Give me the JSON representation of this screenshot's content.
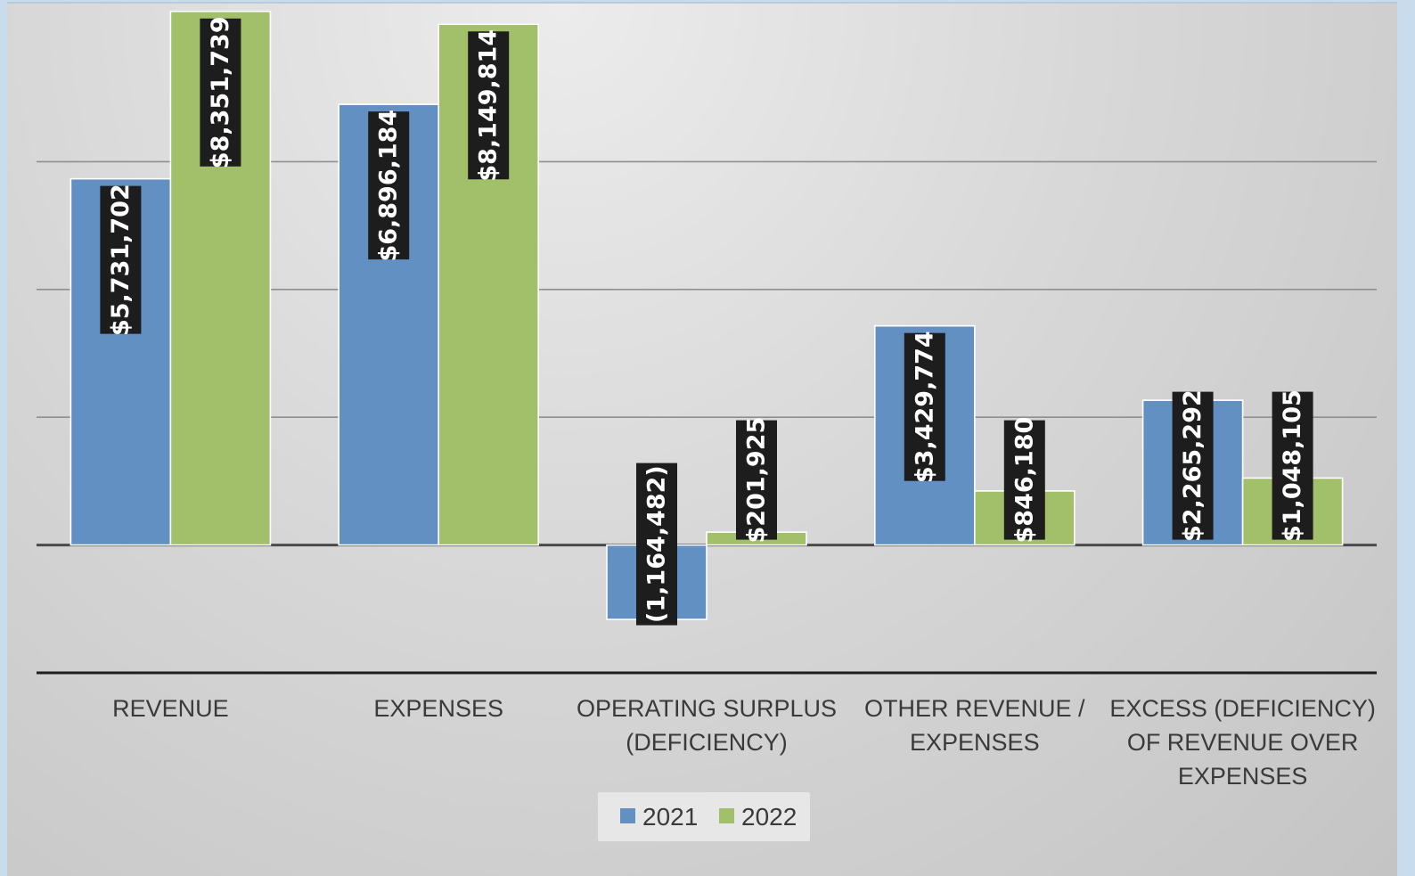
{
  "chart_data": {
    "type": "bar",
    "categories": [
      [
        "REVENUE"
      ],
      [
        "EXPENSES"
      ],
      [
        "OPERATING SURPLUS",
        "(DEFICIENCY)"
      ],
      [
        "OTHER REVENUE /",
        "EXPENSES"
      ],
      [
        "EXCESS (DEFICIENCY)",
        "OF REVENUE OVER",
        "EXPENSES"
      ]
    ],
    "series": [
      {
        "name": "2021",
        "color": "#6290c3",
        "values": [
          5731702,
          6896184,
          -1164482,
          3429774,
          2265292
        ],
        "labels": [
          "$5,731,702",
          "$6,896,184",
          "(1,164,482)",
          "$3,429,774",
          "$2,265,292"
        ]
      },
      {
        "name": "2022",
        "color": "#a2bf6a",
        "values": [
          8351739,
          8149814,
          201925,
          846180,
          1048105
        ],
        "labels": [
          "$8,351,739",
          "$8,149,814",
          "$201,925",
          "$846,180",
          "$1,048,105"
        ]
      }
    ],
    "ylim": [
      -2000000,
      8000000
    ],
    "gridlines": [
      -2000000,
      0,
      2000000,
      4000000,
      6000000,
      8000000
    ],
    "grid": true,
    "data_labels": "rotated-vertical-dark-boxes",
    "legend": "bottom-center"
  }
}
